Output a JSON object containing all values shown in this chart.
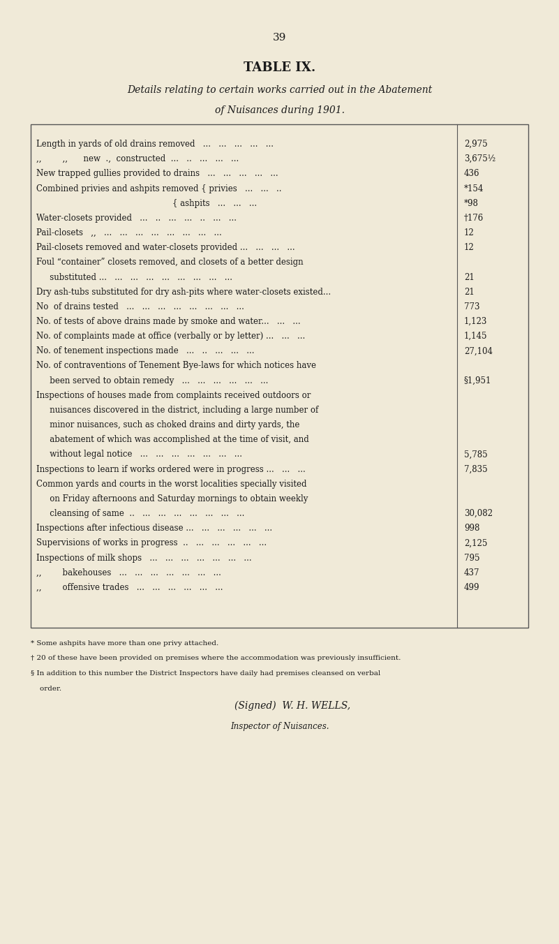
{
  "page_number": "39",
  "title1": "TABLE IX.",
  "title2": "Details relating to certain works carried out in the Abatement",
  "title3": "of Nuisances during 1901.",
  "bg_color": "#f0ead8",
  "text_color": "#1a1a1a",
  "footnotes": [
    "* Some ashpits have more than one privy attached.",
    "† 20 of these have been provided on premises where the accommodation was previously insufficient.",
    "§ In addition to this number the District Inspectors have daily had premises cleansed on verbal",
    "    order."
  ],
  "signed": "(Signed)  W. H. WELLS,",
  "role": "Inspector of Nuisances.",
  "row_data": [
    [
      "Length in yards of old drains removed   ...   ...   ...   ...   ...",
      "2,975",
      0
    ],
    [
      ",,        ,,      new  .,  constructed  ...   ..   ...   ...   ...",
      "3,675½",
      0
    ],
    [
      "New trapped gullies provided to drains   ...   ...   ...   ...   ...",
      "436",
      0
    ],
    [
      "Combined privies and ashpits removed { privies   ...   ...   ..",
      "*154",
      0
    ],
    [
      "                                                    { ashpits   ...   ...   ...",
      "*98",
      0
    ],
    [
      "Water-closets provided   ...   ..   ...   ...   ..   ...   ...",
      "†176",
      0
    ],
    [
      "Pail-closets   ,,   ...   ...   ...   ...   ...   ...   ...   ...",
      "12",
      0
    ],
    [
      "Pail-closets removed and water-closets provided ...   ...   ...   ...",
      "12",
      0
    ],
    [
      "Foul “container” closets removed, and closets of a better design",
      "",
      0
    ],
    [
      "   substituted ...   ...   ...   ...   ...   ...   ...   ...   ...",
      "21",
      1
    ],
    [
      "Dry ash-tubs substituted for dry ash-pits where water-closets existed...",
      "21",
      0
    ],
    [
      "No  of drains tested   ...   ...   ...   ...   ...   ...   ...   ...",
      "773",
      0
    ],
    [
      "No. of tests of above drains made by smoke and water...   ...   ...",
      "1,123",
      0
    ],
    [
      "No. of complaints made at office (verbally or by letter) ...   ...   ...",
      "1,145",
      0
    ],
    [
      "No. of tenement inspections made   ...   ..   ...   ...   ...",
      "27,104",
      0
    ],
    [
      "No. of contraventions of Tenement Bye-laws for which notices have",
      "",
      0
    ],
    [
      "   been served to obtain remedy   ...   ...   ...   ...   ...   ...",
      "§1,951",
      1
    ],
    [
      "Inspections of houses made from complaints received outdoors or",
      "",
      0
    ],
    [
      "   nuisances discovered in the district, including a large number of",
      "",
      1
    ],
    [
      "   minor nuisances, such as choked drains and dirty yards, the",
      "",
      1
    ],
    [
      "   abatement of which was accomplished at the time of visit, and",
      "",
      1
    ],
    [
      "   without legal notice   ...   ...   ...   ...   ...   ...   ...",
      "5,785",
      1
    ],
    [
      "Inspections to learn if works ordered were in progress ...   ...   ...",
      "7,835",
      0
    ],
    [
      "Common yards and courts in the worst localities specially visited",
      "",
      0
    ],
    [
      "   on Friday afternoons and Saturday mornings to obtain weekly",
      "",
      1
    ],
    [
      "   cleansing of same  ..   ...   ...   ...   ...   ...   ...   ...",
      "30,082",
      1
    ],
    [
      "Inspections after infectious disease ...   ...   ...   ...   ...   ...",
      "998",
      0
    ],
    [
      "Supervisions of works in progress  ..   ...   ...   ...   ...   ...",
      "2,125",
      0
    ],
    [
      "Inspections of milk shops   ...   ...   ...   ...   ...   ...   ...",
      "795",
      0
    ],
    [
      ",,        bakehouses   ...   ...   ...   ...   ...   ...   ...",
      "437",
      0
    ],
    [
      ",,        offensive trades   ...   ...   ...   ...   ...   ...",
      "499",
      0
    ]
  ]
}
